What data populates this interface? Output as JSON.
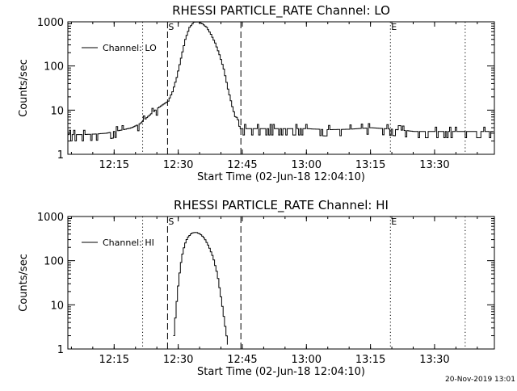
{
  "footer": {
    "timestamp": "20-Nov-2019 13:01"
  },
  "chart_data": [
    {
      "type": "line",
      "title": "RHESSI PARTICLE_RATE Channel: LO",
      "xlabel": "Start Time (02-Jun-18 12:04:10)",
      "ylabel": "Counts/sec",
      "yscale": "log",
      "ylim": [
        1,
        1000
      ],
      "xlim": [
        "12:04:10",
        "13:44:00"
      ],
      "xticks": [
        "12:15",
        "12:30",
        "12:45",
        "13:00",
        "13:15",
        "13:30"
      ],
      "yticks": [
        "1",
        "10",
        "100",
        "1000"
      ],
      "legend": {
        "position": "top-left",
        "label": "Channel: LO"
      },
      "markers": [
        {
          "time": "12:21:40",
          "style": "dotted",
          "label": ""
        },
        {
          "time": "12:27:30",
          "style": "dashed",
          "label": "S"
        },
        {
          "time": "12:44:40",
          "style": "dashed",
          "label": ""
        },
        {
          "time": "13:19:40",
          "style": "dotted",
          "label": "E"
        },
        {
          "time": "13:37:10",
          "style": "dotted",
          "label": ""
        }
      ],
      "series": [
        {
          "color": "#000000",
          "x": [
            "12:04:10",
            "12:08:00",
            "12:11:00",
            "12:13:00",
            "12:15:00",
            "12:17:00",
            "12:19:00",
            "12:21:00",
            "12:23:00",
            "12:25:00",
            "12:27:30",
            "12:28:30",
            "12:29:30",
            "12:30:30",
            "12:31:30",
            "12:32:30",
            "12:33:30",
            "12:34:30",
            "12:35:30",
            "12:36:30",
            "12:37:30",
            "12:38:30",
            "12:39:30",
            "12:40:30",
            "12:41:30",
            "12:42:30",
            "12:43:30",
            "12:44:30",
            "12:50:00",
            "12:55:00",
            "13:00:00",
            "13:05:00",
            "13:10:00",
            "13:15:00",
            "13:20:00",
            "13:25:00",
            "13:30:00",
            "13:35:00",
            "13:40:00",
            "13:44:00"
          ],
          "y": [
            2.8,
            2.8,
            2.9,
            3.0,
            3.3,
            3.6,
            4.0,
            5.0,
            7.5,
            11,
            16,
            26,
            55,
            150,
            400,
            750,
            980,
            1000,
            900,
            750,
            520,
            330,
            180,
            85,
            30,
            12,
            5.5,
            3.8,
            3.8,
            3.8,
            3.8,
            3.6,
            3.7,
            4.0,
            3.7,
            3.3,
            3.3,
            3.3,
            3.3,
            3.3
          ]
        }
      ]
    },
    {
      "type": "line",
      "title": "RHESSI PARTICLE_RATE Channel: HI",
      "xlabel": "Start Time (02-Jun-18 12:04:10)",
      "ylabel": "Counts/sec",
      "yscale": "log",
      "ylim": [
        1,
        1000
      ],
      "xlim": [
        "12:04:10",
        "13:44:00"
      ],
      "xticks": [
        "12:15",
        "12:30",
        "12:45",
        "13:00",
        "13:15",
        "13:30"
      ],
      "yticks": [
        "1",
        "10",
        "100",
        "1000"
      ],
      "legend": {
        "position": "top-left",
        "label": "Channel: HI"
      },
      "markers": [
        {
          "time": "12:21:40",
          "style": "dotted",
          "label": ""
        },
        {
          "time": "12:27:30",
          "style": "dashed",
          "label": "S"
        },
        {
          "time": "12:44:40",
          "style": "dashed",
          "label": ""
        },
        {
          "time": "13:19:40",
          "style": "dotted",
          "label": "E"
        },
        {
          "time": "13:37:10",
          "style": "dotted",
          "label": ""
        }
      ],
      "series": [
        {
          "color": "#000000",
          "x": [
            "12:28:50",
            "12:29:20",
            "12:30:00",
            "12:30:40",
            "12:31:20",
            "12:32:00",
            "12:33:00",
            "12:34:00",
            "12:35:00",
            "12:36:00",
            "12:37:00",
            "12:38:00",
            "12:39:00",
            "12:40:00",
            "12:41:00",
            "12:41:40"
          ],
          "y": [
            2.0,
            8,
            40,
            120,
            230,
            330,
            420,
            440,
            400,
            320,
            210,
            120,
            50,
            12,
            2.5,
            1.0
          ]
        }
      ]
    }
  ]
}
